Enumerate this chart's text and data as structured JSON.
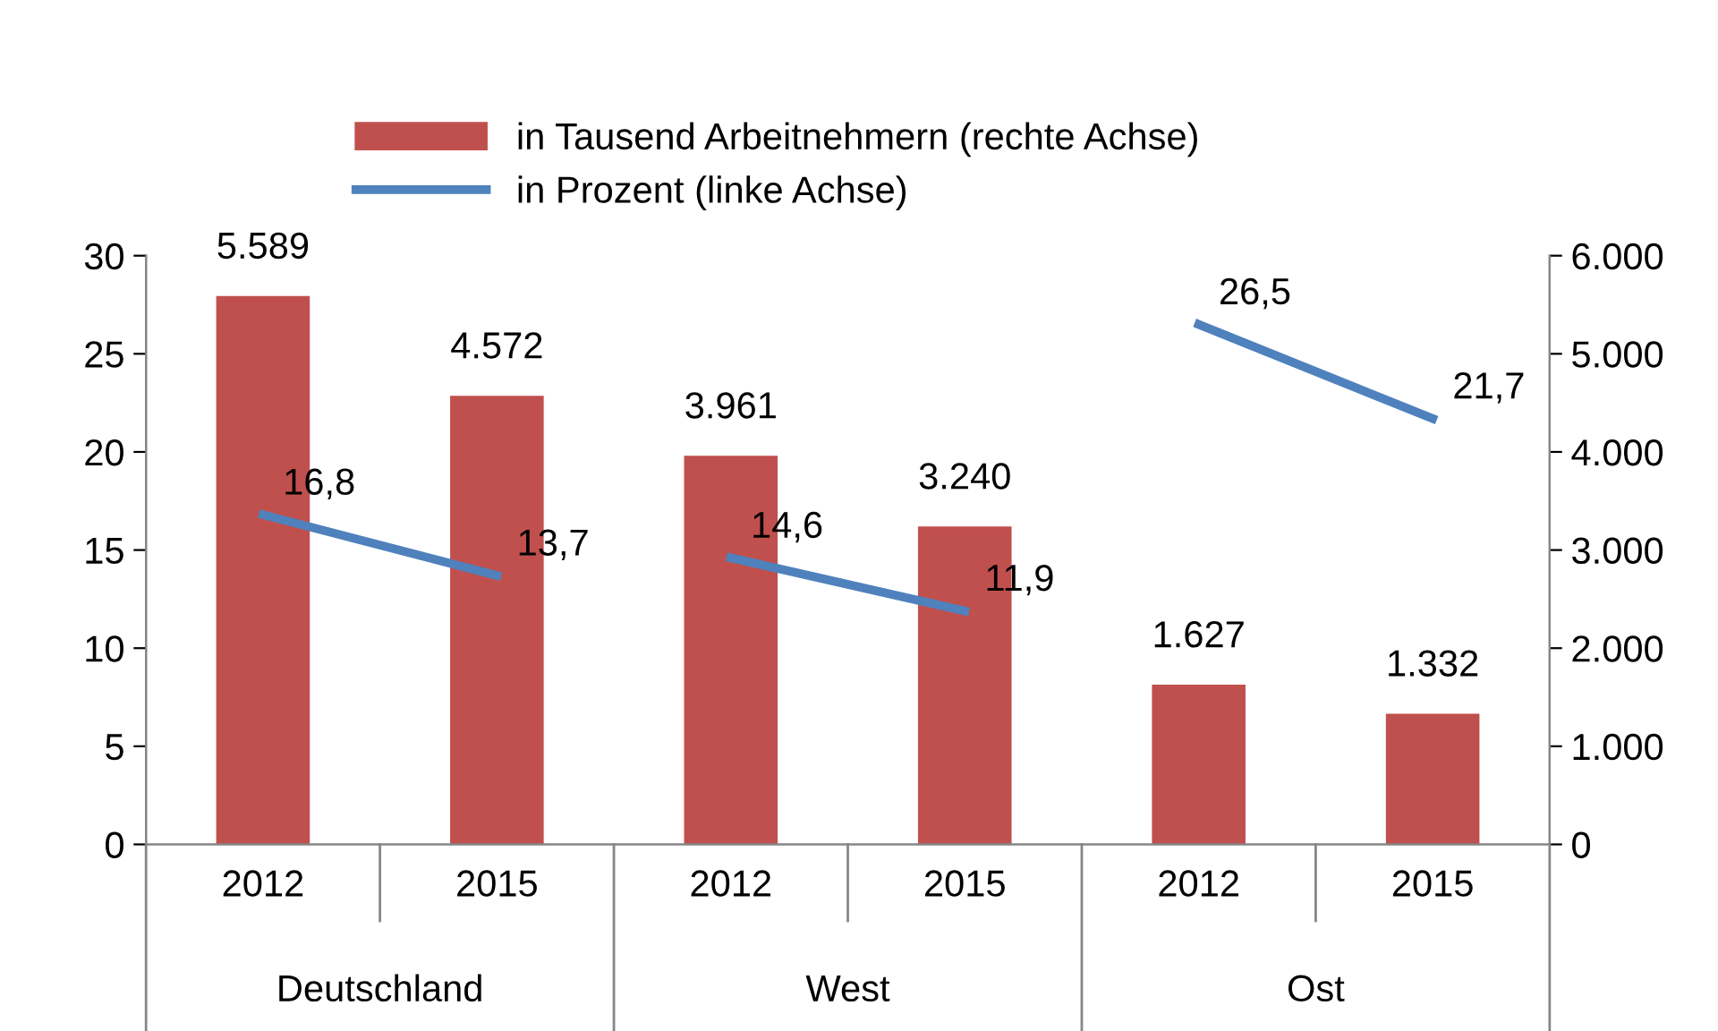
{
  "chart_data": {
    "type": "bar",
    "categories": [
      "2012",
      "2015",
      "2012",
      "2015",
      "2012",
      "2015"
    ],
    "annotations": [
      "Deutschland",
      "West",
      "Ost"
    ],
    "series": [
      {
        "name": "in Tausend Arbeitnehmern (rechte Achse)",
        "axis": "y2",
        "color": "#c0504d",
        "values": [
          5589,
          4572,
          3961,
          3240,
          1627,
          1332
        ],
        "value_labels": [
          "5.589",
          "4.572",
          "3.961",
          "3.240",
          "1.627",
          "1.332"
        ]
      },
      {
        "name": "in Prozent (linke Achse)",
        "type": "line",
        "color": "#4f81bd",
        "values": [
          16.8,
          13.7,
          null,
          null,
          null,
          null
        ],
        "value_labels": [
          "16,8",
          "13,7",
          null,
          null,
          null,
          null
        ]
      },
      {
        "type": "line",
        "color": "#4f81bd",
        "values": [
          null,
          null,
          14.6,
          11.9,
          null,
          null
        ],
        "value_labels": [
          null,
          null,
          "14,6",
          "11,9",
          null,
          null
        ]
      },
      {
        "type": "line",
        "color": "#4f81bd",
        "values": [
          null,
          null,
          null,
          null,
          26.5,
          21.7
        ],
        "value_labels": [
          null,
          null,
          null,
          null,
          "26,5",
          "21,7"
        ]
      }
    ],
    "ylim": [
      0,
      30
    ],
    "yticks": [
      0,
      5,
      10,
      15,
      20,
      25,
      30
    ],
    "y2lim": [
      0,
      6000
    ],
    "y2ticks": [
      0,
      {
        "value": 1000,
        "label": "1.000"
      },
      {
        "value": 2000,
        "label": "2.000"
      },
      {
        "value": 3000,
        "label": "3.000"
      },
      {
        "value": 4000,
        "label": "4.000"
      },
      {
        "value": 5000,
        "label": "5.000"
      },
      {
        "value": 6000,
        "label": "6.000"
      }
    ],
    "legend": "top",
    "grid": false,
    "marker": "none",
    "line_style": "solid"
  }
}
